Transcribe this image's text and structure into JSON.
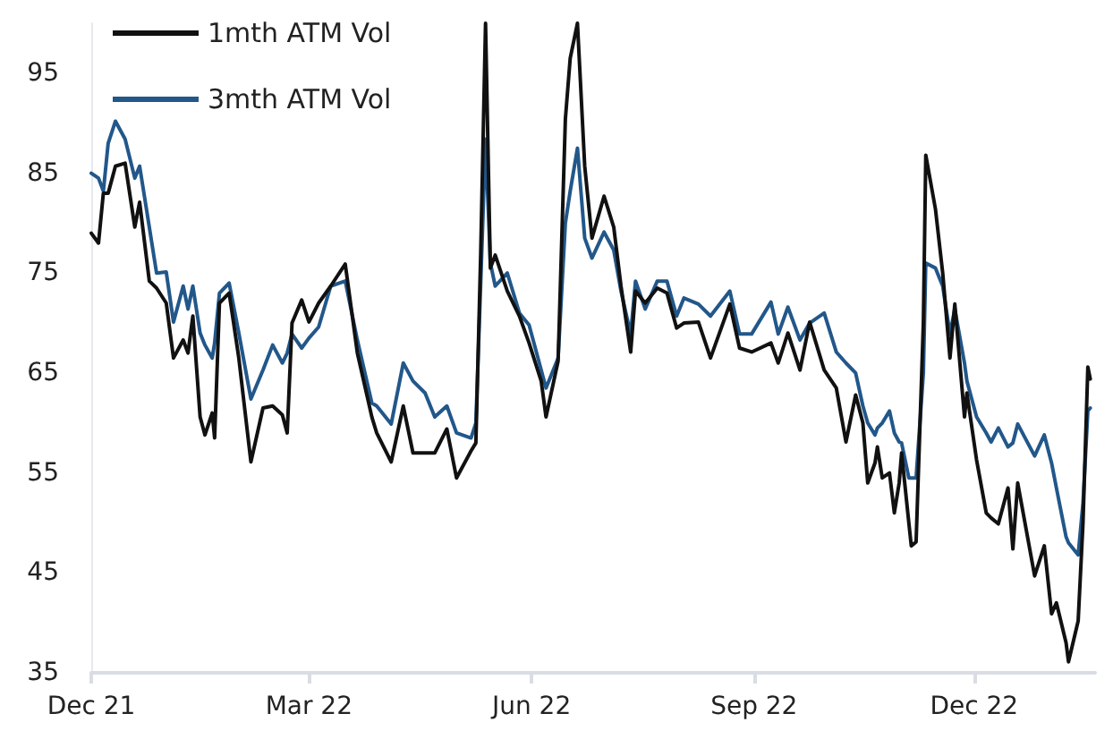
{
  "chart_data": {
    "type": "line",
    "x": [
      "2021-12-01",
      "2021-12-04",
      "2021-12-06",
      "2021-12-08",
      "2021-12-11",
      "2021-12-15",
      "2021-12-19",
      "2021-12-21",
      "2021-12-25",
      "2021-12-28",
      "2022-01-01",
      "2022-01-04",
      "2022-01-08",
      "2022-01-10",
      "2022-01-12",
      "2022-01-15",
      "2022-01-17",
      "2022-01-20",
      "2022-01-21",
      "2022-01-23",
      "2022-01-27",
      "2022-01-31",
      "2022-02-05",
      "2022-02-10",
      "2022-02-14",
      "2022-02-18",
      "2022-02-20",
      "2022-02-22",
      "2022-02-26",
      "2022-03-01",
      "2022-03-05",
      "2022-03-10",
      "2022-03-16",
      "2022-03-21",
      "2022-03-27",
      "2022-03-29",
      "2022-04-04",
      "2022-04-09",
      "2022-04-13",
      "2022-04-18",
      "2022-04-22",
      "2022-04-27",
      "2022-05-01",
      "2022-05-07",
      "2022-05-09",
      "2022-05-11",
      "2022-05-13",
      "2022-05-15",
      "2022-05-17",
      "2022-05-22",
      "2022-05-27",
      "2022-05-31",
      "2022-06-05",
      "2022-06-07",
      "2022-06-12",
      "2022-06-15",
      "2022-06-17",
      "2022-06-20",
      "2022-06-23",
      "2022-06-26",
      "2022-07-01",
      "2022-07-05",
      "2022-07-08",
      "2022-07-12",
      "2022-07-14",
      "2022-07-18",
      "2022-07-23",
      "2022-07-27",
      "2022-07-31",
      "2022-08-03",
      "2022-08-09",
      "2022-08-14",
      "2022-08-22",
      "2022-08-26",
      "2022-08-31",
      "2022-09-08",
      "2022-09-11",
      "2022-09-15",
      "2022-09-20",
      "2022-09-24",
      "2022-09-30",
      "2022-10-05",
      "2022-10-09",
      "2022-10-13",
      "2022-10-16",
      "2022-10-18",
      "2022-10-21",
      "2022-10-22",
      "2022-10-24",
      "2022-10-27",
      "2022-10-29",
      "2022-10-31",
      "2022-11-01",
      "2022-11-04",
      "2022-11-05",
      "2022-11-07",
      "2022-11-10",
      "2022-11-11",
      "2022-11-15",
      "2022-11-18",
      "2022-11-21",
      "2022-11-23",
      "2022-11-27",
      "2022-11-28",
      "2022-12-02",
      "2022-12-06",
      "2022-12-08",
      "2022-12-11",
      "2022-12-15",
      "2022-12-17",
      "2022-12-19",
      "2022-12-26",
      "2022-12-30",
      "2023-01-02",
      "2023-01-04",
      "2023-01-08",
      "2023-01-09",
      "2023-01-13",
      "2023-01-15",
      "2023-01-17",
      "2023-01-18"
    ],
    "series": [
      {
        "name": "1mth ATM Vol",
        "color": "#111111",
        "values": [
          79,
          78,
          83,
          83,
          85.7,
          86,
          79.6,
          82.1,
          74.2,
          73.5,
          72,
          66.5,
          68.3,
          67,
          70.7,
          60.6,
          58.8,
          61,
          58.5,
          72,
          73,
          66.5,
          56.1,
          61.5,
          61.7,
          60.8,
          59,
          70,
          72.3,
          70.1,
          72,
          73.7,
          75.9,
          67,
          60.6,
          59,
          56.1,
          61.7,
          57,
          57,
          57,
          59.4,
          54.5,
          57.2,
          58,
          77,
          100,
          75.5,
          76.8,
          73.2,
          70.7,
          68,
          64.2,
          60.6,
          66.2,
          90.4,
          96.5,
          100,
          85.7,
          78.5,
          82.7,
          79.6,
          73.7,
          67.1,
          73.2,
          72,
          73.5,
          73,
          69.5,
          70,
          70.1,
          66.5,
          71.9,
          67.5,
          67.1,
          68,
          66,
          69,
          65.3,
          70.1,
          65.3,
          63.5,
          58.1,
          62.8,
          60,
          54,
          56,
          57.6,
          54.5,
          55,
          51,
          54,
          57,
          50,
          47.7,
          48.1,
          70,
          86.8,
          81.4,
          75,
          66.5,
          71.9,
          60.6,
          63,
          56.3,
          51,
          50.5,
          49.9,
          53.5,
          47.4,
          54,
          44.7,
          47.7,
          40.9,
          42,
          38,
          36.1,
          40.2,
          50,
          65.6,
          64.4
        ]
      },
      {
        "name": "3mth ATM Vol",
        "color": "#22578a",
        "values": [
          85,
          84.5,
          83.2,
          88,
          90.2,
          88.4,
          84.5,
          85.7,
          79.6,
          75,
          75.1,
          70.1,
          73.7,
          71.4,
          73.7,
          69,
          67.8,
          66.5,
          68,
          73,
          74,
          69,
          62.4,
          65.3,
          67.8,
          66,
          67,
          68.9,
          67.5,
          68.5,
          69.6,
          73.7,
          74.2,
          68.3,
          62,
          61.7,
          59.9,
          66,
          64.2,
          63,
          60.6,
          61.7,
          59,
          58.5,
          60,
          74,
          88.4,
          76,
          73.7,
          75,
          71,
          69.8,
          65.3,
          63.5,
          66.5,
          80,
          83.2,
          87.5,
          78.5,
          76.5,
          79.1,
          77.3,
          73.2,
          68.9,
          74.2,
          71.4,
          74.2,
          74.2,
          70.7,
          72.5,
          71.9,
          70.7,
          73.2,
          68.9,
          68.9,
          72.1,
          68.9,
          71.6,
          68.3,
          70,
          71,
          67.1,
          66,
          65,
          61.7,
          60,
          58.8,
          59.5,
          60,
          61.2,
          59,
          58.1,
          58,
          54.5,
          54.5,
          54.5,
          65,
          76,
          75.5,
          73.7,
          68.9,
          71.4,
          66,
          64.2,
          60.6,
          59,
          58.1,
          59.5,
          57.6,
          58,
          59.9,
          56.7,
          58.8,
          56,
          53.5,
          48.6,
          48,
          46.8,
          52,
          61.2,
          61.5
        ]
      }
    ],
    "xlim": [
      "2021-12-01",
      "2023-01-20"
    ],
    "xticks": [
      {
        "value": "2021-12-01",
        "label": "Dec 21"
      },
      {
        "value": "2022-03-01",
        "label": "Mar 22"
      },
      {
        "value": "2022-06-01",
        "label": "Jun 22"
      },
      {
        "value": "2022-09-01",
        "label": "Sep 22"
      },
      {
        "value": "2022-12-01",
        "label": "Dec 22"
      }
    ],
    "ylim": [
      35,
      100
    ],
    "yticks": [
      35,
      45,
      55,
      65,
      75,
      85,
      95
    ],
    "legend": "top left",
    "grid": false,
    "marker": "none",
    "line_style": "solid"
  }
}
